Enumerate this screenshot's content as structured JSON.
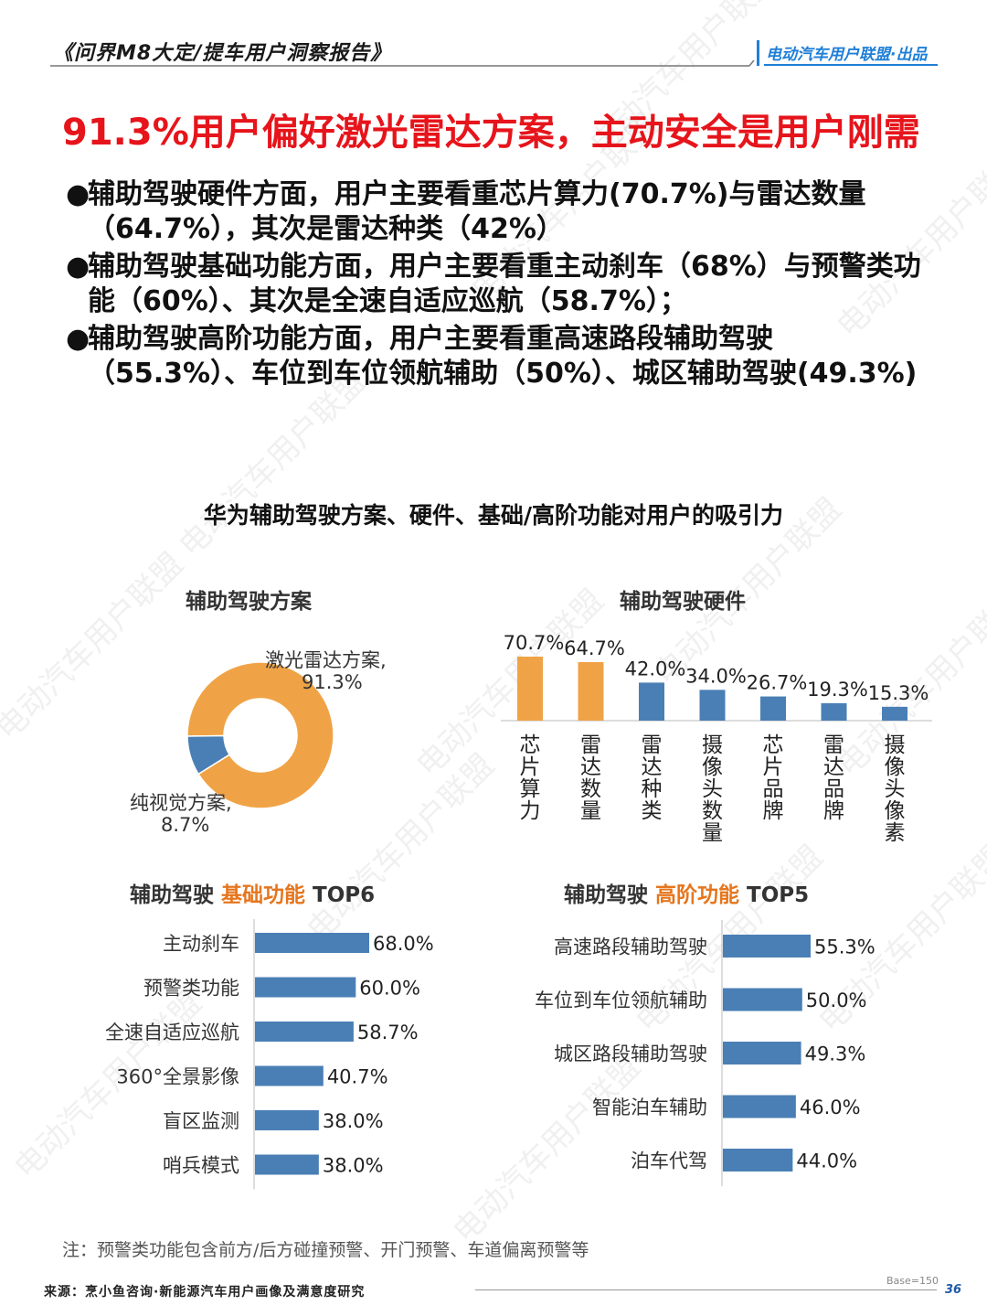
{
  "header": {
    "report_title": "《问界M8大定/提车用户洞察报告》",
    "brand": "电动汽车用户联盟·出品"
  },
  "headline": "91.3%用户偏好激光雷达方案，主动安全是用户刚需",
  "bullets": [
    {
      "dot": "●",
      "text": "辅助驾驶硬件方面，用户主要看重芯片算力(70.7%)与雷达数量（64.7%），其次是雷达种类（42%）"
    },
    {
      "dot": "●",
      "text": "辅助驾驶基础功能方面，用户主要看重主动刹车（68%）与预警类功能（60%）、其次是全速自适应巡航（58.7%）；"
    },
    {
      "dot": "●",
      "text": "辅助驾驶高阶功能方面，用户主要看重高速路段辅助驾驶（55.3%）、车位到车位领航辅助（50%）、城区辅助驾驶(49.3%)"
    }
  ],
  "main_title": "华为辅助驾驶方案、硬件、基础/高阶功能对用户的吸引力",
  "watermark": "电动汽车用户联盟",
  "chart_data": [
    {
      "type": "pie",
      "title": "辅助驾驶方案",
      "slices": [
        {
          "label": "激光雷达方案,",
          "value": 91.3,
          "value_label": "91.3%",
          "color": "#f0a346"
        },
        {
          "label": "纯视觉方案,",
          "value": 8.7,
          "value_label": "8.7%",
          "color": "#4a7fb5"
        }
      ]
    },
    {
      "type": "bar",
      "title": "辅助驾驶硬件",
      "categories": [
        "芯片算力",
        "雷达数量",
        "雷达种类",
        "摄像头数量",
        "芯片品牌",
        "雷达品牌",
        "摄像头像素"
      ],
      "values": [
        70.7,
        64.7,
        42.0,
        34.0,
        26.7,
        19.3,
        15.3
      ],
      "value_labels": [
        "70.7%",
        "64.7%",
        "42.0%",
        "34.0%",
        "26.7%",
        "19.3%",
        "15.3%"
      ],
      "colors": [
        "#f0a346",
        "#f0a346",
        "#4a7fb5",
        "#4a7fb5",
        "#4a7fb5",
        "#4a7fb5",
        "#4a7fb5"
      ]
    },
    {
      "type": "bar",
      "orientation": "horizontal",
      "title_prefix": "辅助驾驶",
      "title_highlight": "基础功能",
      "title_suffix": "TOP6",
      "categories": [
        "主动刹车",
        "预警类功能",
        "全速自适应巡航",
        "360°全景影像",
        "盲区监测",
        "哨兵模式"
      ],
      "values": [
        68.0,
        60.0,
        58.7,
        40.7,
        38.0,
        38.0
      ],
      "value_labels": [
        "68.0%",
        "60.0%",
        "58.7%",
        "40.7%",
        "38.0%",
        "38.0%"
      ],
      "color": "#4a7fb5"
    },
    {
      "type": "bar",
      "orientation": "horizontal",
      "title_prefix": "辅助驾驶",
      "title_highlight": "高阶功能",
      "title_suffix": "TOP5",
      "categories": [
        "高速路段辅助驾驶",
        "车位到车位领航辅助",
        "城区路段辅助驾驶",
        "智能泊车辅助",
        "泊车代驾"
      ],
      "values": [
        55.3,
        50.0,
        49.3,
        46.0,
        44.0
      ],
      "value_labels": [
        "55.3%",
        "50.0%",
        "49.3%",
        "46.0%",
        "44.0%"
      ],
      "color": "#4a7fb5"
    }
  ],
  "footer": {
    "note": "注：预警类功能包含前方/后方碰撞预警、开门预警、车道偏离预警等",
    "source": "来源：烹小鱼咨询·新能源汽车用户画像及满意度研究",
    "base": "Base=150",
    "page": "36"
  }
}
